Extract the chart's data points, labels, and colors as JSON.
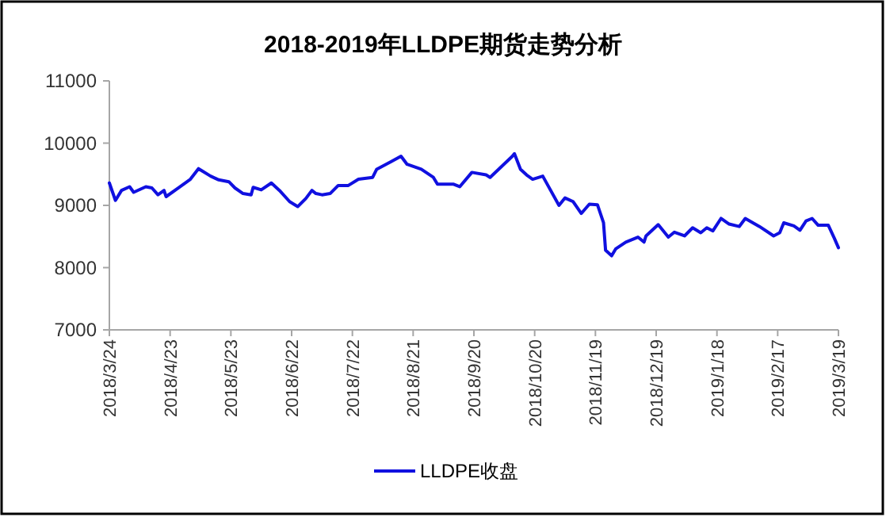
{
  "chart_data": {
    "type": "line",
    "title": "2018-2019年LLDPE期货走势分析",
    "x": [
      "2018-03-24",
      "2018-03-27",
      "2018-03-30",
      "2018-04-03",
      "2018-04-05",
      "2018-04-11",
      "2018-04-14",
      "2018-04-17",
      "2018-04-20",
      "2018-04-21",
      "2018-04-27",
      "2018-05-03",
      "2018-05-07",
      "2018-05-13",
      "2018-05-17",
      "2018-05-22",
      "2018-05-25",
      "2018-05-29",
      "2018-06-02",
      "2018-06-03",
      "2018-06-07",
      "2018-06-12",
      "2018-06-16",
      "2018-06-21",
      "2018-06-25",
      "2018-06-29",
      "2018-07-02",
      "2018-07-04",
      "2018-07-07",
      "2018-07-11",
      "2018-07-15",
      "2018-07-20",
      "2018-07-25",
      "2018-08-01",
      "2018-08-03",
      "2018-08-10",
      "2018-08-15",
      "2018-08-18",
      "2018-08-25",
      "2018-08-31",
      "2018-09-02",
      "2018-09-10",
      "2018-09-13",
      "2018-09-19",
      "2018-09-26",
      "2018-09-28",
      "2018-10-09",
      "2018-10-10",
      "2018-10-13",
      "2018-10-16",
      "2018-10-19",
      "2018-10-24",
      "2018-11-01",
      "2018-11-04",
      "2018-11-08",
      "2018-11-12",
      "2018-11-16",
      "2018-11-20",
      "2018-11-23",
      "2018-11-24",
      "2018-11-27",
      "2018-11-29",
      "2018-12-04",
      "2018-12-10",
      "2018-12-13",
      "2018-12-14",
      "2018-12-20",
      "2018-12-25",
      "2018-12-28",
      "2019-01-02",
      "2019-01-06",
      "2019-01-10",
      "2019-01-13",
      "2019-01-16",
      "2019-01-20",
      "2019-01-24",
      "2019-01-29",
      "2019-02-01",
      "2019-02-08",
      "2019-02-15",
      "2019-02-18",
      "2019-02-20",
      "2019-02-25",
      "2019-02-28",
      "2019-03-03",
      "2019-03-06",
      "2019-03-09",
      "2019-03-14",
      "2019-03-17",
      "2019-03-19"
    ],
    "series": [
      {
        "name": "LLDPE收盘",
        "color": "#1010e0",
        "values": [
          9360,
          9080,
          9240,
          9300,
          9210,
          9300,
          9280,
          9170,
          9240,
          9140,
          9280,
          9420,
          9590,
          9470,
          9410,
          9380,
          9280,
          9190,
          9170,
          9290,
          9250,
          9360,
          9240,
          9060,
          8980,
          9110,
          9240,
          9190,
          9170,
          9190,
          9320,
          9320,
          9420,
          9450,
          9580,
          9700,
          9790,
          9660,
          9580,
          9450,
          9340,
          9340,
          9300,
          9530,
          9490,
          9450,
          9790,
          9830,
          9580,
          9490,
          9420,
          9470,
          9000,
          9120,
          9060,
          8870,
          9020,
          9010,
          8720,
          8280,
          8190,
          8300,
          8410,
          8490,
          8410,
          8510,
          8690,
          8490,
          8570,
          8510,
          8640,
          8560,
          8640,
          8590,
          8790,
          8700,
          8660,
          8790,
          8660,
          8510,
          8560,
          8720,
          8670,
          8600,
          8750,
          8790,
          8680,
          8680,
          8470,
          8320
        ]
      }
    ],
    "xlim": [
      "2018-03-24",
      "2019-03-19"
    ],
    "xticks": [
      {
        "value": "2018-03-24",
        "label": "2018/3/24"
      },
      {
        "value": "2018-04-23",
        "label": "2018/4/23"
      },
      {
        "value": "2018-05-23",
        "label": "2018/5/23"
      },
      {
        "value": "2018-06-22",
        "label": "2018/6/22"
      },
      {
        "value": "2018-07-22",
        "label": "2018/7/22"
      },
      {
        "value": "2018-08-21",
        "label": "2018/8/21"
      },
      {
        "value": "2018-09-20",
        "label": "2018/9/20"
      },
      {
        "value": "2018-10-20",
        "label": "2018/10/20"
      },
      {
        "value": "2018-11-19",
        "label": "2018/11/19"
      },
      {
        "value": "2018-12-19",
        "label": "2018/12/19"
      },
      {
        "value": "2019-01-18",
        "label": "2019/1/18"
      },
      {
        "value": "2019-02-17",
        "label": "2019/2/17"
      },
      {
        "value": "2019-03-19",
        "label": "2019/3/19"
      }
    ],
    "ylim": [
      7000,
      11000
    ],
    "yticks": [
      7000,
      8000,
      9000,
      10000,
      11000
    ],
    "legend": "bottom",
    "line_style": "solid"
  }
}
